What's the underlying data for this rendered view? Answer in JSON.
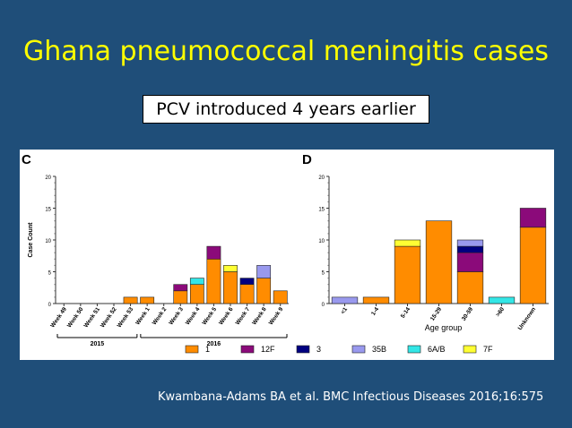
{
  "slide": {
    "title": "Ghana pneumococcal meningitis cases",
    "subtitle": "PCV introduced 4 years earlier",
    "citation": "Kwambana-Adams BA et al. BMC Infectious Diseases 2016;16:575"
  },
  "colors": {
    "1": "#ff8c00",
    "12F": "#8b0a7a",
    "3": "#000080",
    "35B": "#9999ee",
    "6A/B": "#33e6e6",
    "7F": "#ffff33"
  },
  "chart_data": [
    {
      "type": "bar",
      "stacked": true,
      "panel_label": "C",
      "ylabel": "Case Count",
      "xlabel": "",
      "ylim": [
        0,
        20
      ],
      "yticks": [
        0,
        5,
        10,
        15,
        20
      ],
      "categories": [
        "Week 49",
        "Week 50",
        "Week 51",
        "Week 52",
        "Week 53",
        "Week 1",
        "Week 2",
        "Week 3",
        "Week 4",
        "Week 5",
        "Week 6",
        "Week 7",
        "Week 8",
        "Week 9"
      ],
      "year_groups": [
        {
          "label": "2015",
          "from": 0,
          "to": 4
        },
        {
          "label": "2016",
          "from": 5,
          "to": 13
        }
      ],
      "series": [
        {
          "name": "1",
          "values": [
            0,
            0,
            0,
            0,
            1,
            1,
            0,
            2,
            3,
            7,
            5,
            3,
            4,
            2
          ]
        },
        {
          "name": "12F",
          "values": [
            0,
            0,
            0,
            0,
            0,
            0,
            0,
            1,
            0,
            2,
            0,
            0,
            0,
            0
          ]
        },
        {
          "name": "3",
          "values": [
            0,
            0,
            0,
            0,
            0,
            0,
            0,
            0,
            0,
            0,
            0,
            1,
            0,
            0
          ]
        },
        {
          "name": "35B",
          "values": [
            0,
            0,
            0,
            0,
            0,
            0,
            0,
            0,
            0,
            0,
            0,
            0,
            2,
            0
          ]
        },
        {
          "name": "6A/B",
          "values": [
            0,
            0,
            0,
            0,
            0,
            0,
            0,
            0,
            1,
            0,
            0,
            0,
            0,
            0
          ]
        },
        {
          "name": "7F",
          "values": [
            0,
            0,
            0,
            0,
            0,
            0,
            0,
            0,
            0,
            0,
            1,
            0,
            0,
            0
          ]
        }
      ]
    },
    {
      "type": "bar",
      "stacked": true,
      "panel_label": "D",
      "xlabel": "Age group",
      "ylabel": "",
      "ylim": [
        0,
        20
      ],
      "yticks": [
        0,
        5,
        10,
        15,
        20
      ],
      "categories": [
        "<1",
        "1-4",
        "5-14",
        "15-29",
        "30-59",
        ">60",
        "Unknown"
      ],
      "series": [
        {
          "name": "1",
          "values": [
            0,
            1,
            9,
            13,
            5,
            0,
            12
          ]
        },
        {
          "name": "12F",
          "values": [
            0,
            0,
            0,
            0,
            3,
            0,
            3
          ]
        },
        {
          "name": "3",
          "values": [
            0,
            0,
            0,
            0,
            1,
            0,
            0
          ]
        },
        {
          "name": "35B",
          "values": [
            1,
            0,
            0,
            0,
            1,
            0,
            0
          ]
        },
        {
          "name": "6A/B",
          "values": [
            0,
            0,
            0,
            0,
            0,
            1,
            0
          ]
        },
        {
          "name": "7F",
          "values": [
            0,
            0,
            1,
            0,
            0,
            0,
            0
          ]
        }
      ]
    }
  ],
  "legend": [
    "1",
    "12F",
    "3",
    "35B",
    "6A/B",
    "7F"
  ]
}
